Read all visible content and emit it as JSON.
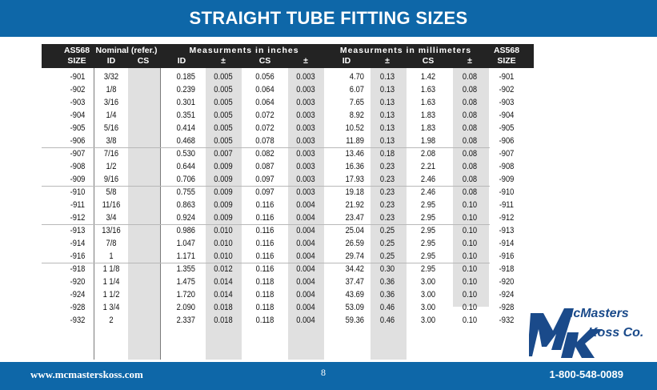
{
  "title": "STRAIGHT TUBE FITTING SIZES",
  "header": {
    "as568_left": "AS568",
    "size_left": "SIZE",
    "nominal": "Nominal (refer.)",
    "nominal_id": "ID",
    "nominal_cs": "CS",
    "inches_group": "Measurments in inches",
    "mm_group": "Measurments in millimeters",
    "id": "ID",
    "pm": "±",
    "cs": "CS",
    "as568_right": "AS568",
    "size_right": "SIZE"
  },
  "rows": [
    [
      "-901",
      "3/32",
      "0.185",
      "0.005",
      "0.056",
      "0.003",
      "4.70",
      "0.13",
      "1.42",
      "0.08",
      "-901"
    ],
    [
      "-902",
      "1/8",
      "0.239",
      "0.005",
      "0.064",
      "0.003",
      "6.07",
      "0.13",
      "1.63",
      "0.08",
      "-902"
    ],
    [
      "-903",
      "3/16",
      "0.301",
      "0.005",
      "0.064",
      "0.003",
      "7.65",
      "0.13",
      "1.63",
      "0.08",
      "-903"
    ],
    [
      "-904",
      "1/4",
      "0.351",
      "0.005",
      "0.072",
      "0.003",
      "8.92",
      "0.13",
      "1.83",
      "0.08",
      "-904"
    ],
    [
      "-905",
      "5/16",
      "0.414",
      "0.005",
      "0.072",
      "0.003",
      "10.52",
      "0.13",
      "1.83",
      "0.08",
      "-905"
    ],
    [
      "-906",
      "3/8",
      "0.468",
      "0.005",
      "0.078",
      "0.003",
      "11.89",
      "0.13",
      "1.98",
      "0.08",
      "-906"
    ],
    [
      "-907",
      "7/16",
      "0.530",
      "0.007",
      "0.082",
      "0.003",
      "13.46",
      "0.18",
      "2.08",
      "0.08",
      "-907"
    ],
    [
      "-908",
      "1/2",
      "0.644",
      "0.009",
      "0.087",
      "0.003",
      "16.36",
      "0.23",
      "2.21",
      "0.08",
      "-908"
    ],
    [
      "-909",
      "9/16",
      "0.706",
      "0.009",
      "0.097",
      "0.003",
      "17.93",
      "0.23",
      "2.46",
      "0.08",
      "-909"
    ],
    [
      "-910",
      "5/8",
      "0.755",
      "0.009",
      "0.097",
      "0.003",
      "19.18",
      "0.23",
      "2.46",
      "0.08",
      "-910"
    ],
    [
      "-911",
      "11/16",
      "0.863",
      "0.009",
      "0.116",
      "0.004",
      "21.92",
      "0.23",
      "2.95",
      "0.10",
      "-911"
    ],
    [
      "-912",
      "3/4",
      "0.924",
      "0.009",
      "0.116",
      "0.004",
      "23.47",
      "0.23",
      "2.95",
      "0.10",
      "-912"
    ],
    [
      "-913",
      "13/16",
      "0.986",
      "0.010",
      "0.116",
      "0.004",
      "25.04",
      "0.25",
      "2.95",
      "0.10",
      "-913"
    ],
    [
      "-914",
      "7/8",
      "1.047",
      "0.010",
      "0.116",
      "0.004",
      "26.59",
      "0.25",
      "2.95",
      "0.10",
      "-914"
    ],
    [
      "-916",
      "1",
      "1.171",
      "0.010",
      "0.116",
      "0.004",
      "29.74",
      "0.25",
      "2.95",
      "0.10",
      "-916"
    ],
    [
      "-918",
      "1 1/8",
      "1.355",
      "0.012",
      "0.116",
      "0.004",
      "34.42",
      "0.30",
      "2.95",
      "0.10",
      "-918"
    ],
    [
      "-920",
      "1 1/4",
      "1.475",
      "0.014",
      "0.118",
      "0.004",
      "37.47",
      "0.36",
      "3.00",
      "0.10",
      "-920"
    ],
    [
      "-924",
      "1 1/2",
      "1.720",
      "0.014",
      "0.118",
      "0.004",
      "43.69",
      "0.36",
      "3.00",
      "0.10",
      "-924"
    ],
    [
      "-928",
      "1 3/4",
      "2.090",
      "0.018",
      "0.118",
      "0.004",
      "53.09",
      "0.46",
      "3.00",
      "0.10",
      "-928"
    ],
    [
      "-932",
      "2",
      "2.337",
      "0.018",
      "0.118",
      "0.004",
      "59.36",
      "0.46",
      "3.00",
      "0.10",
      "-932"
    ]
  ],
  "logo": {
    "line1": "McMasters",
    "line2": "Koss Co."
  },
  "footer": {
    "website": "www.mcmasterskoss.com",
    "page": "8",
    "phone": "1-800-548-0089"
  },
  "colors": {
    "brand_blue": "#0e67a8",
    "header_dark": "#232323",
    "shade": "#e0e0e0",
    "logo_blue": "#1a4a8a"
  }
}
